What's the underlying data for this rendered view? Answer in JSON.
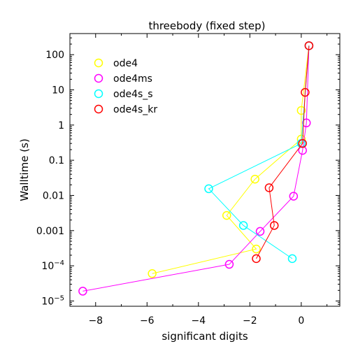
{
  "chart_data": {
    "type": "line",
    "title": "threebody (fixed step)",
    "xlabel": "significant digits",
    "ylabel": "Walltime (s)",
    "xlim": [
      -9,
      1.5
    ],
    "ylim_log10": [
      -5.15,
      2.6
    ],
    "y_scale": "log",
    "grid": false,
    "legend_position": "top-left",
    "x_ticks": [
      {
        "value": -8,
        "label": "−8"
      },
      {
        "value": -6,
        "label": "−6"
      },
      {
        "value": -4,
        "label": "−4"
      },
      {
        "value": -2,
        "label": "−2"
      },
      {
        "value": 0,
        "label": "0"
      }
    ],
    "y_ticks": [
      {
        "exp": 2,
        "label": "100"
      },
      {
        "exp": 1,
        "label": "10"
      },
      {
        "exp": 0,
        "label": "1"
      },
      {
        "exp": -1,
        "label": "0.1"
      },
      {
        "exp": -2,
        "label": "0.01"
      },
      {
        "exp": -3,
        "label": "0.001"
      },
      {
        "exp": -4,
        "label": "10",
        "sup": "−4"
      },
      {
        "exp": -5,
        "label": "10",
        "sup": "−5"
      }
    ],
    "series": [
      {
        "name": "ode4",
        "color": "#ffff00",
        "points": [
          {
            "x": -5.8,
            "y": 6e-05
          },
          {
            "x": -1.75,
            "y": 0.0003
          },
          {
            "x": -2.9,
            "y": 0.0027
          },
          {
            "x": -1.8,
            "y": 0.029
          },
          {
            "x": 0.0,
            "y": 0.4
          },
          {
            "x": 0.0,
            "y": 2.6
          },
          {
            "x": 0.3,
            "y": 180
          }
        ]
      },
      {
        "name": "ode4ms",
        "color": "#ff00ff",
        "points": [
          {
            "x": -8.5,
            "y": 1.9e-05
          },
          {
            "x": -2.8,
            "y": 0.00011
          },
          {
            "x": -1.6,
            "y": 0.00095
          },
          {
            "x": -0.3,
            "y": 0.0095
          },
          {
            "x": 0.05,
            "y": 0.19
          },
          {
            "x": 0.2,
            "y": 1.15
          },
          {
            "x": 0.3,
            "y": 180
          }
        ]
      },
      {
        "name": "ode4s_s",
        "color": "#00ffff",
        "points": [
          {
            "x": -0.35,
            "y": 0.00016
          },
          {
            "x": -2.25,
            "y": 0.0014
          },
          {
            "x": -3.6,
            "y": 0.0155
          },
          {
            "x": 0.0,
            "y": 0.3
          },
          {
            "x": 0.3,
            "y": 180
          }
        ]
      },
      {
        "name": "ode4s_kr",
        "color": "#ff0000",
        "points": [
          {
            "x": -1.75,
            "y": 0.00016
          },
          {
            "x": -1.05,
            "y": 0.0014
          },
          {
            "x": -1.25,
            "y": 0.0165
          },
          {
            "x": 0.05,
            "y": 0.3
          },
          {
            "x": 0.15,
            "y": 8.5
          },
          {
            "x": 0.3,
            "y": 180
          }
        ]
      }
    ]
  }
}
